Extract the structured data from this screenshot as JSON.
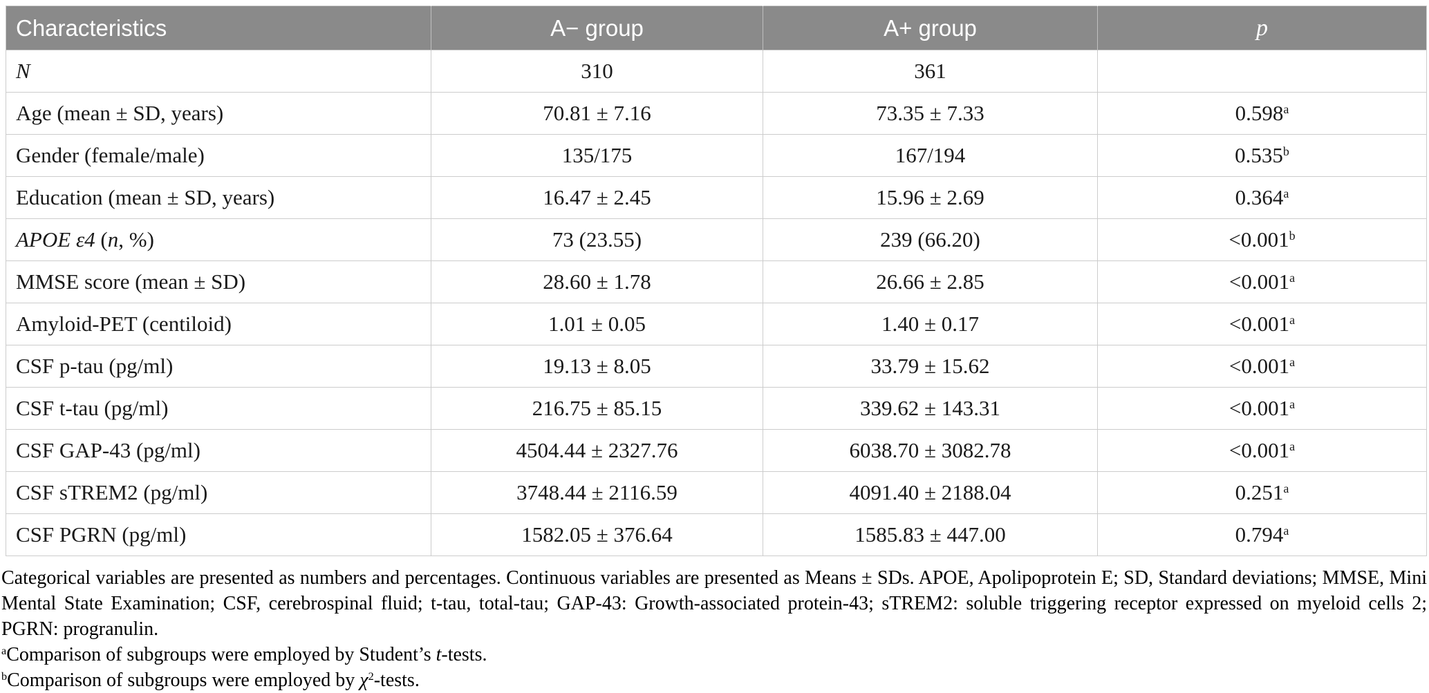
{
  "colors": {
    "header_bg": "#8a8a8a",
    "header_text": "#ffffff",
    "border": "#cccccc",
    "body_text": "#1a1a1a"
  },
  "table": {
    "columns": [
      "Characteristics",
      "A− group",
      "A+ group",
      "p"
    ],
    "rows": [
      {
        "label_segments": [
          {
            "text": "N",
            "italic": true
          }
        ],
        "cells": [
          "310",
          "361"
        ],
        "p": "",
        "p_sup": ""
      },
      {
        "label_segments": [
          {
            "text": "Age (mean ± SD, years)"
          }
        ],
        "cells": [
          "70.81 ± 7.16",
          "73.35 ± 7.33"
        ],
        "p": "0.598",
        "p_sup": "a"
      },
      {
        "label_segments": [
          {
            "text": "Gender (female/male)"
          }
        ],
        "cells": [
          "135/175",
          "167/194"
        ],
        "p": "0.535",
        "p_sup": "b"
      },
      {
        "label_segments": [
          {
            "text": "Education (mean ± SD, years)"
          }
        ],
        "cells": [
          "16.47 ± 2.45",
          "15.96 ± 2.69"
        ],
        "p": "0.364",
        "p_sup": "a"
      },
      {
        "label_segments": [
          {
            "text": "APOE ε4",
            "italic": true
          },
          {
            "text": " ("
          },
          {
            "text": "n",
            "italic": true
          },
          {
            "text": ", %)"
          }
        ],
        "cells": [
          "73 (23.55)",
          "239 (66.20)"
        ],
        "p": "<0.001",
        "p_sup": "b"
      },
      {
        "label_segments": [
          {
            "text": "MMSE score (mean ± SD)"
          }
        ],
        "cells": [
          "28.60 ± 1.78",
          "26.66 ± 2.85"
        ],
        "p": "<0.001",
        "p_sup": "a"
      },
      {
        "label_segments": [
          {
            "text": "Amyloid-PET (centiloid)"
          }
        ],
        "cells": [
          "1.01 ± 0.05",
          "1.40 ± 0.17"
        ],
        "p": "<0.001",
        "p_sup": "a"
      },
      {
        "label_segments": [
          {
            "text": "CSF p-tau (pg/ml)"
          }
        ],
        "cells": [
          "19.13 ± 8.05",
          "33.79 ± 15.62"
        ],
        "p": "<0.001",
        "p_sup": "a"
      },
      {
        "label_segments": [
          {
            "text": "CSF t-tau (pg/ml)"
          }
        ],
        "cells": [
          "216.75 ± 85.15",
          "339.62 ± 143.31"
        ],
        "p": "<0.001",
        "p_sup": "a"
      },
      {
        "label_segments": [
          {
            "text": "CSF GAP-43 (pg/ml)"
          }
        ],
        "cells": [
          "4504.44 ± 2327.76",
          "6038.70 ± 3082.78"
        ],
        "p": "<0.001",
        "p_sup": "a"
      },
      {
        "label_segments": [
          {
            "text": "CSF sTREM2 (pg/ml)"
          }
        ],
        "cells": [
          "3748.44 ± 2116.59",
          "4091.40 ± 2188.04"
        ],
        "p": "0.251",
        "p_sup": "a"
      },
      {
        "label_segments": [
          {
            "text": "CSF PGRN (pg/ml)"
          }
        ],
        "cells": [
          "1582.05 ± 376.64",
          "1585.83 ± 447.00"
        ],
        "p": "0.794",
        "p_sup": "a"
      }
    ]
  },
  "footnotes": {
    "general": "Categorical variables are presented as numbers and percentages. Continuous variables are presented as Means ± SDs. APOE, Apolipoprotein E; SD, Standard deviations; MMSE, Mini Mental State Examination; CSF, cerebrospinal fluid; t-tau, total-tau; GAP-43: Growth-associated protein-43; sTREM2: soluble triggering receptor expressed on myeloid cells 2; PGRN: progranulin.",
    "a": {
      "sup": "a",
      "pre": "Comparison of subgroups were employed by Student’s ",
      "italic": "t",
      "post": "-tests."
    },
    "b": {
      "sup": "b",
      "pre": "Comparison of subgroups were employed by ",
      "italic": "χ",
      "italic_sup": "2",
      "post": "-tests."
    }
  }
}
